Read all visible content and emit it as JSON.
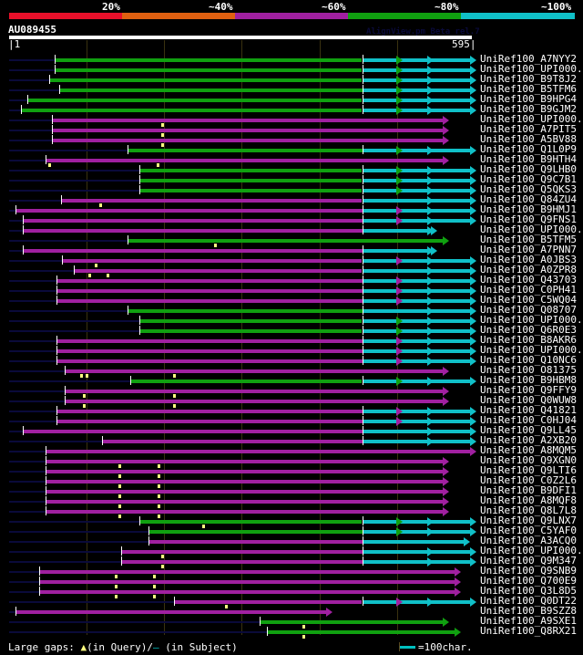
{
  "legend": {
    "labels": [
      "20%",
      "~40%",
      "~60%",
      "~80%",
      "~100%"
    ],
    "colors": [
      "#e8102a",
      "#e06010",
      "#a020a0",
      "#10a010",
      "#10c0c8"
    ]
  },
  "query": {
    "name": "AU089455",
    "watermark": "AlignView.pm Beta rel.7",
    "start": "1",
    "end": "595",
    "length": 595
  },
  "colors": {
    "magenta": "#a020a0",
    "green": "#10a010",
    "cyan": "#10c0c8",
    "unaligned": "#0a0a3a",
    "gap_marker": "#ffff80"
  },
  "hits": [
    {
      "label": "UniRef100_A7NYY2",
      "start": 60,
      "end": 595,
      "color": "green",
      "tail": "cyan",
      "arrows": 3,
      "gaps": []
    },
    {
      "label": "UniRef100_UPI000..",
      "start": 60,
      "end": 595,
      "color": "green",
      "tail": "cyan",
      "arrows": 3,
      "gaps": []
    },
    {
      "label": "UniRef100_B9T8J2",
      "start": 52,
      "end": 595,
      "color": "green",
      "tail": "cyan",
      "arrows": 3,
      "gaps": []
    },
    {
      "label": "UniRef100_B5TFM6",
      "start": 65,
      "end": 595,
      "color": "green",
      "tail": "cyan",
      "arrows": 3,
      "gaps": []
    },
    {
      "label": "UniRef100_B9HPG4",
      "start": 24,
      "end": 595,
      "color": "green",
      "tail": "cyan",
      "arrows": 3,
      "gaps": []
    },
    {
      "label": "UniRef100_B9GJM2",
      "start": 16,
      "end": 595,
      "color": "green",
      "tail": "cyan",
      "arrows": 3,
      "gaps": []
    },
    {
      "label": "UniRef100_UPI000..",
      "start": 56,
      "end": 560,
      "color": "magenta",
      "tail": null,
      "arrows": 1,
      "gaps": [
        198
      ]
    },
    {
      "label": "UniRef100_A7PIT5",
      "start": 56,
      "end": 560,
      "color": "magenta",
      "tail": null,
      "arrows": 1,
      "gaps": [
        198
      ]
    },
    {
      "label": "UniRef100_A5BV88",
      "start": 56,
      "end": 560,
      "color": "magenta",
      "tail": null,
      "arrows": 1,
      "gaps": [
        198
      ]
    },
    {
      "label": "UniRef100_Q1L0P9",
      "start": 153,
      "end": 595,
      "color": "green",
      "tail": "cyan",
      "arrows": 3,
      "gaps": []
    },
    {
      "label": "UniRef100_B9HTH4",
      "start": 48,
      "end": 560,
      "color": "magenta",
      "tail": null,
      "arrows": 1,
      "gaps": [
        53,
        192
      ]
    },
    {
      "label": "UniRef100_Q9LHB0",
      "start": 168,
      "end": 595,
      "color": "green",
      "tail": "cyan",
      "arrows": 3,
      "gaps": []
    },
    {
      "label": "UniRef100_Q9C7B1",
      "start": 168,
      "end": 595,
      "color": "green",
      "tail": "cyan",
      "arrows": 3,
      "gaps": []
    },
    {
      "label": "UniRef100_Q5QKS3",
      "start": 168,
      "end": 595,
      "color": "green",
      "tail": "cyan",
      "arrows": 3,
      "gaps": []
    },
    {
      "label": "UniRef100_Q84ZU4",
      "start": 68,
      "end": 595,
      "color": "magenta",
      "tail": "cyan",
      "arrows": 2,
      "gaps": [
        118
      ]
    },
    {
      "label": "UniRef100_B9HMJ1",
      "start": 9,
      "end": 595,
      "color": "magenta",
      "tail": "cyan",
      "arrows": 3,
      "gaps": []
    },
    {
      "label": "UniRef100_Q9FNS1",
      "start": 19,
      "end": 595,
      "color": "magenta",
      "tail": "cyan",
      "arrows": 3,
      "gaps": []
    },
    {
      "label": "UniRef100_UPI000..",
      "start": 19,
      "end": 545,
      "color": "magenta",
      "tail": "cyan",
      "arrows": 2,
      "gaps": []
    },
    {
      "label": "UniRef100_B5TFM5",
      "start": 153,
      "end": 560,
      "color": "green",
      "tail": null,
      "arrows": 1,
      "gaps": [
        266
      ]
    },
    {
      "label": "UniRef100_A7PNN7",
      "start": 19,
      "end": 545,
      "color": "magenta",
      "tail": "cyan",
      "arrows": 2,
      "gaps": []
    },
    {
      "label": "UniRef100_A0JBS3",
      "start": 69,
      "end": 595,
      "color": "magenta",
      "tail": "cyan",
      "arrows": 3,
      "gaps": [
        112
      ]
    },
    {
      "label": "UniRef100_A0ZPR8",
      "start": 84,
      "end": 595,
      "color": "magenta",
      "tail": "cyan",
      "arrows": 2,
      "gaps": [
        104,
        128
      ]
    },
    {
      "label": "UniRef100_Q43703",
      "start": 62,
      "end": 595,
      "color": "magenta",
      "tail": "cyan",
      "arrows": 3,
      "gaps": []
    },
    {
      "label": "UniRef100_C0PH41",
      "start": 62,
      "end": 595,
      "color": "magenta",
      "tail": "cyan",
      "arrows": 3,
      "gaps": []
    },
    {
      "label": "UniRef100_C5WQ04",
      "start": 62,
      "end": 595,
      "color": "magenta",
      "tail": "cyan",
      "arrows": 3,
      "gaps": []
    },
    {
      "label": "UniRef100_Q08707",
      "start": 153,
      "end": 595,
      "color": "green",
      "tail": "cyan",
      "arrows": 2,
      "gaps": []
    },
    {
      "label": "UniRef100_UPI000..",
      "start": 168,
      "end": 595,
      "color": "green",
      "tail": "cyan",
      "arrows": 3,
      "gaps": []
    },
    {
      "label": "UniRef100_Q6R0E3",
      "start": 168,
      "end": 595,
      "color": "green",
      "tail": "cyan",
      "arrows": 3,
      "gaps": []
    },
    {
      "label": "UniRef100_B8AKR6",
      "start": 62,
      "end": 595,
      "color": "magenta",
      "tail": "cyan",
      "arrows": 3,
      "gaps": []
    },
    {
      "label": "UniRef100_UPI000..",
      "start": 62,
      "end": 595,
      "color": "magenta",
      "tail": "cyan",
      "arrows": 3,
      "gaps": []
    },
    {
      "label": "UniRef100_Q10NC6",
      "start": 62,
      "end": 595,
      "color": "magenta",
      "tail": "cyan",
      "arrows": 3,
      "gaps": []
    },
    {
      "label": "UniRef100_O81375",
      "start": 72,
      "end": 560,
      "color": "magenta",
      "tail": null,
      "arrows": 1,
      "gaps": [
        93,
        100,
        213
      ]
    },
    {
      "label": "UniRef100_B9HBM8",
      "start": 157,
      "end": 595,
      "color": "green",
      "tail": "cyan",
      "arrows": 3,
      "gaps": []
    },
    {
      "label": "UniRef100_Q9FFY9",
      "start": 72,
      "end": 560,
      "color": "magenta",
      "tail": null,
      "arrows": 1,
      "gaps": [
        97,
        213
      ]
    },
    {
      "label": "UniRef100_Q0WUW8",
      "start": 72,
      "end": 560,
      "color": "magenta",
      "tail": null,
      "arrows": 1,
      "gaps": [
        97,
        213
      ]
    },
    {
      "label": "UniRef100_Q41821",
      "start": 62,
      "end": 595,
      "color": "magenta",
      "tail": "cyan",
      "arrows": 3,
      "gaps": []
    },
    {
      "label": "UniRef100_C0HJ04",
      "start": 62,
      "end": 595,
      "color": "magenta",
      "tail": "cyan",
      "arrows": 3,
      "gaps": []
    },
    {
      "label": "UniRef100_Q9LL45",
      "start": 19,
      "end": 595,
      "color": "magenta",
      "tail": "cyan",
      "arrows": 2,
      "gaps": []
    },
    {
      "label": "UniRef100_A2XB20",
      "start": 121,
      "end": 595,
      "color": "magenta",
      "tail": "cyan",
      "arrows": 2,
      "gaps": []
    },
    {
      "label": "UniRef100_A8MQM5",
      "start": 48,
      "end": 595,
      "color": "magenta",
      "tail": null,
      "arrows": 1,
      "gaps": []
    },
    {
      "label": "UniRef100_Q9XGN0",
      "start": 48,
      "end": 560,
      "color": "magenta",
      "tail": null,
      "arrows": 1,
      "gaps": [
        143,
        193
      ]
    },
    {
      "label": "UniRef100_Q9LTI6",
      "start": 48,
      "end": 560,
      "color": "magenta",
      "tail": null,
      "arrows": 1,
      "gaps": [
        143,
        193
      ]
    },
    {
      "label": "UniRef100_C0Z2L6",
      "start": 48,
      "end": 560,
      "color": "magenta",
      "tail": null,
      "arrows": 1,
      "gaps": [
        143,
        193
      ]
    },
    {
      "label": "UniRef100_B9DFI1",
      "start": 48,
      "end": 560,
      "color": "magenta",
      "tail": null,
      "arrows": 1,
      "gaps": [
        143,
        193
      ]
    },
    {
      "label": "UniRef100_A8MQF8",
      "start": 48,
      "end": 560,
      "color": "magenta",
      "tail": null,
      "arrows": 1,
      "gaps": [
        143,
        193
      ]
    },
    {
      "label": "UniRef100_Q8L7L8",
      "start": 48,
      "end": 560,
      "color": "magenta",
      "tail": null,
      "arrows": 1,
      "gaps": [
        143,
        193
      ]
    },
    {
      "label": "UniRef100_Q9LNX7",
      "start": 168,
      "end": 595,
      "color": "green",
      "tail": "cyan",
      "arrows": 3,
      "gaps": [
        250
      ]
    },
    {
      "label": "UniRef100_C5YAF0",
      "start": 180,
      "end": 595,
      "color": "green",
      "tail": "cyan",
      "arrows": 3,
      "gaps": []
    },
    {
      "label": "UniRef100_A3ACQ0",
      "start": 180,
      "end": 587,
      "color": "magenta",
      "tail": "cyan",
      "arrows": 1,
      "gaps": []
    },
    {
      "label": "UniRef100_UPI000..",
      "start": 145,
      "end": 595,
      "color": "magenta",
      "tail": "cyan",
      "arrows": 2,
      "gaps": [
        198
      ]
    },
    {
      "label": "UniRef100_Q9M347",
      "start": 145,
      "end": 595,
      "color": "magenta",
      "tail": "cyan",
      "arrows": 2,
      "gaps": [
        198
      ]
    },
    {
      "label": "UniRef100_Q9SNB9",
      "start": 40,
      "end": 575,
      "color": "magenta",
      "tail": null,
      "arrows": 1,
      "gaps": [
        138,
        187
      ]
    },
    {
      "label": "UniRef100_Q700E9",
      "start": 40,
      "end": 575,
      "color": "magenta",
      "tail": null,
      "arrows": 1,
      "gaps": [
        138,
        187
      ]
    },
    {
      "label": "UniRef100_Q3L8D5",
      "start": 40,
      "end": 575,
      "color": "magenta",
      "tail": null,
      "arrows": 1,
      "gaps": [
        138,
        187
      ]
    },
    {
      "label": "UniRef100_Q0DT22",
      "start": 213,
      "end": 595,
      "color": "magenta",
      "tail": "cyan",
      "arrows": 3,
      "gaps": [
        280
      ]
    },
    {
      "label": "UniRef100_B9SZZ8",
      "start": 9,
      "end": 410,
      "color": "magenta",
      "tail": null,
      "arrows": 1,
      "gaps": []
    },
    {
      "label": "UniRef100_A9SXE1",
      "start": 323,
      "end": 560,
      "color": "green",
      "tail": null,
      "arrows": 1,
      "gaps": [
        380
      ]
    },
    {
      "label": "UniRef100_Q8RX21",
      "start": 332,
      "end": 575,
      "color": "green",
      "tail": null,
      "arrows": 1,
      "gaps": [
        380
      ]
    }
  ],
  "footer": {
    "prefix": "Large gaps:",
    "query_gap_symbol": "▲",
    "query_gap_text": "(in Query)/",
    "subject_gap_symbol": "—",
    "subject_gap_text": " (in Subject)",
    "scale_label": "=100char."
  }
}
